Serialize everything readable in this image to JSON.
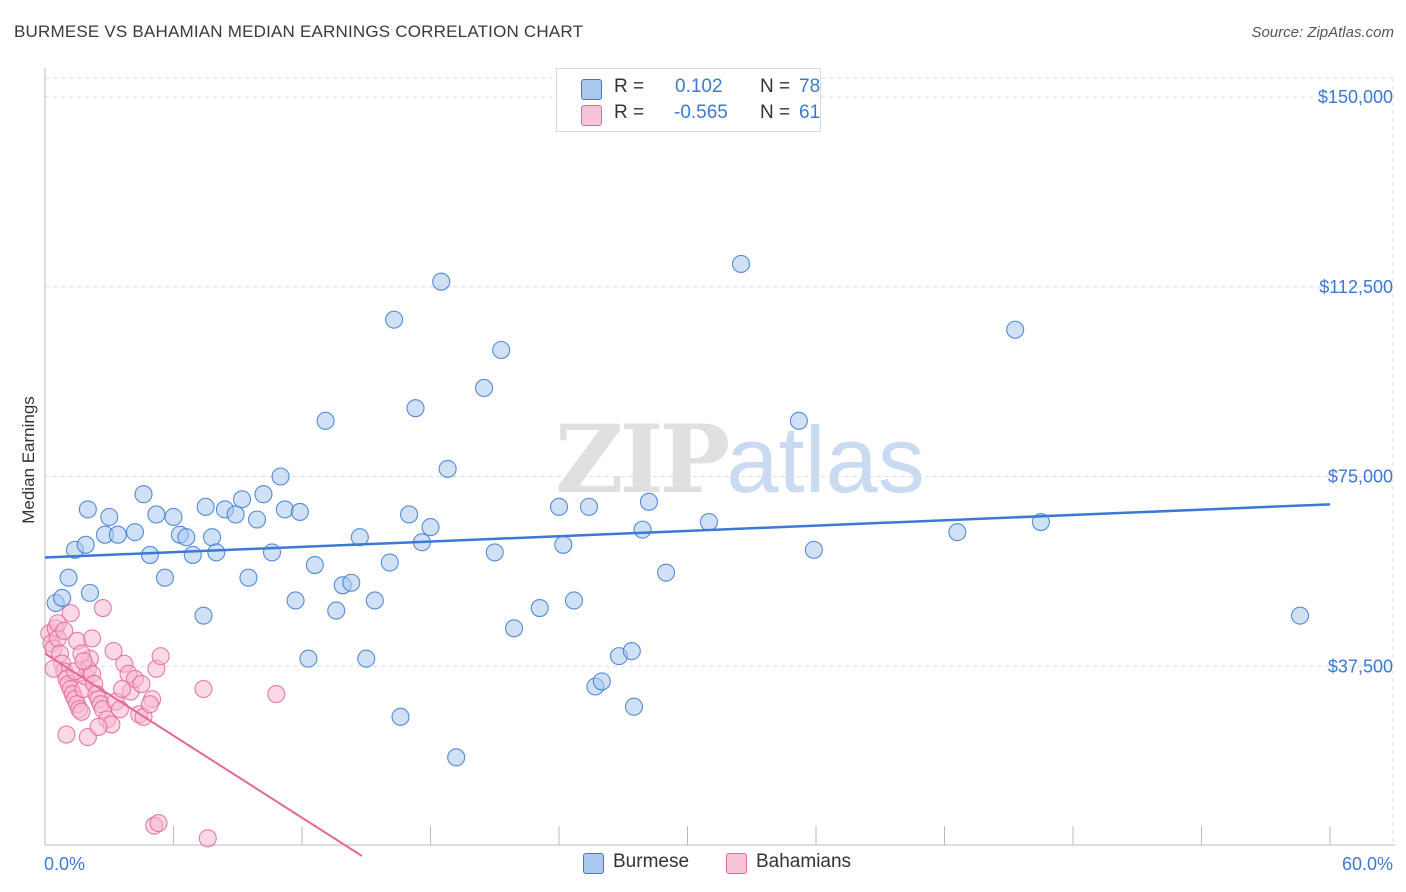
{
  "chart_data": {
    "type": "scatter",
    "title": "BURMESE VS BAHAMIAN MEDIAN EARNINGS CORRELATION CHART",
    "source": "Source: ZipAtlas.com",
    "xlabel": "",
    "ylabel": "Median Earnings",
    "xlim": [
      0,
      60
    ],
    "ylim": [
      0,
      150000
    ],
    "x_tick_labels": [
      "0.0%",
      "60.0%"
    ],
    "y_ticks": [
      {
        "value": 150000,
        "label": "$150,000"
      },
      {
        "value": 112500,
        "label": "$112,500"
      },
      {
        "value": 75000,
        "label": "$75,000"
      },
      {
        "value": 37500,
        "label": "$37,500"
      }
    ],
    "legend_top": [
      {
        "series": "Burmese",
        "r_label": "R =",
        "r_value": " 0.102",
        "n_label": "N =",
        "n_value": "78"
      },
      {
        "series": "Bahamians",
        "r_label": "R =",
        "r_value": "-0.565",
        "n_label": "N =",
        "n_value": "61"
      }
    ],
    "watermark": {
      "zip": "ZIP",
      "atlas": "atlas"
    },
    "colors": {
      "Burmese": "#3b79d4",
      "Burmese_fill": "#a9c8ef",
      "Bahamians": "#e4679b",
      "Bahamians_fill": "#f6b8cf"
    },
    "series": [
      {
        "name": "Burmese",
        "trendline": {
          "x": [
            0,
            60
          ],
          "y": [
            59000,
            69500
          ]
        },
        "points": [
          [
            0.5,
            50000
          ],
          [
            0.8,
            51000
          ],
          [
            1.1,
            55000
          ],
          [
            1.4,
            60500
          ],
          [
            1.9,
            61500
          ],
          [
            2.0,
            68500
          ],
          [
            2.1,
            52000
          ],
          [
            2.8,
            63500
          ],
          [
            3.0,
            67000
          ],
          [
            3.4,
            63500
          ],
          [
            4.2,
            64000
          ],
          [
            4.6,
            71500
          ],
          [
            4.9,
            59500
          ],
          [
            5.2,
            67500
          ],
          [
            5.6,
            55000
          ],
          [
            6.0,
            67000
          ],
          [
            6.3,
            63500
          ],
          [
            6.6,
            63000
          ],
          [
            6.9,
            59500
          ],
          [
            7.4,
            47500
          ],
          [
            7.5,
            69000
          ],
          [
            7.8,
            63000
          ],
          [
            8.0,
            60000
          ],
          [
            8.4,
            68500
          ],
          [
            8.9,
            67500
          ],
          [
            9.2,
            70500
          ],
          [
            9.5,
            55000
          ],
          [
            9.9,
            66500
          ],
          [
            10.2,
            71500
          ],
          [
            10.6,
            60000
          ],
          [
            11.0,
            75000
          ],
          [
            11.2,
            68500
          ],
          [
            11.7,
            50500
          ],
          [
            11.9,
            68000
          ],
          [
            12.3,
            39000
          ],
          [
            12.6,
            57500
          ],
          [
            13.1,
            86000
          ],
          [
            13.6,
            48500
          ],
          [
            13.9,
            53500
          ],
          [
            14.3,
            54000
          ],
          [
            14.7,
            63000
          ],
          [
            15.0,
            39000
          ],
          [
            15.4,
            50500
          ],
          [
            16.1,
            58000
          ],
          [
            16.3,
            106000
          ],
          [
            16.6,
            27500
          ],
          [
            17.0,
            67500
          ],
          [
            17.3,
            88500
          ],
          [
            17.6,
            62000
          ],
          [
            18.0,
            65000
          ],
          [
            18.5,
            113500
          ],
          [
            18.8,
            76500
          ],
          [
            19.2,
            19500
          ],
          [
            20.5,
            92500
          ],
          [
            21.3,
            100000
          ],
          [
            21.9,
            45000
          ],
          [
            23.1,
            49000
          ],
          [
            24.0,
            69000
          ],
          [
            24.2,
            61500
          ],
          [
            24.7,
            50500
          ],
          [
            25.4,
            69000
          ],
          [
            25.7,
            33500
          ],
          [
            26.0,
            34500
          ],
          [
            26.8,
            39500
          ],
          [
            27.4,
            40500
          ],
          [
            27.5,
            29500
          ],
          [
            27.9,
            64500
          ],
          [
            28.2,
            70000
          ],
          [
            32.5,
            117000
          ],
          [
            35.2,
            86000
          ],
          [
            35.9,
            60500
          ],
          [
            42.6,
            64000
          ],
          [
            45.3,
            104000
          ],
          [
            58.6,
            47500
          ],
          [
            46.5,
            66000
          ],
          [
            21.0,
            60000
          ],
          [
            29.0,
            56000
          ],
          [
            31.0,
            66000
          ]
        ]
      },
      {
        "name": "Bahamians",
        "trendline": {
          "x": [
            0,
            14.8
          ],
          "y": [
            40000,
            0
          ]
        },
        "points": [
          [
            0.2,
            44000
          ],
          [
            0.3,
            42000
          ],
          [
            0.4,
            41000
          ],
          [
            0.5,
            45000
          ],
          [
            0.6,
            43000
          ],
          [
            0.7,
            40000
          ],
          [
            0.8,
            38000
          ],
          [
            0.9,
            36500
          ],
          [
            1.0,
            35000
          ],
          [
            1.1,
            34000
          ],
          [
            1.2,
            33000
          ],
          [
            1.3,
            32000
          ],
          [
            1.4,
            31000
          ],
          [
            1.5,
            30000
          ],
          [
            1.6,
            29000
          ],
          [
            1.7,
            28500
          ],
          [
            1.8,
            33000
          ],
          [
            1.9,
            35500
          ],
          [
            2.0,
            37000
          ],
          [
            2.1,
            39000
          ],
          [
            2.2,
            36000
          ],
          [
            2.3,
            34000
          ],
          [
            2.4,
            32000
          ],
          [
            2.5,
            31000
          ],
          [
            2.6,
            30000
          ],
          [
            2.7,
            29000
          ],
          [
            2.9,
            27000
          ],
          [
            3.1,
            26000
          ],
          [
            3.3,
            30500
          ],
          [
            3.5,
            29000
          ],
          [
            3.7,
            38000
          ],
          [
            3.9,
            36000
          ],
          [
            4.0,
            32500
          ],
          [
            4.2,
            35000
          ],
          [
            4.4,
            28000
          ],
          [
            4.6,
            27500
          ],
          [
            5.0,
            31000
          ],
          [
            5.2,
            37000
          ],
          [
            5.4,
            39500
          ],
          [
            1.2,
            48000
          ],
          [
            0.6,
            46000
          ],
          [
            0.9,
            44500
          ],
          [
            1.5,
            42500
          ],
          [
            2.2,
            43000
          ],
          [
            2.7,
            49000
          ],
          [
            3.2,
            40500
          ],
          [
            3.6,
            33000
          ],
          [
            4.5,
            34000
          ],
          [
            4.9,
            30000
          ],
          [
            1.0,
            24000
          ],
          [
            1.4,
            36500
          ],
          [
            1.7,
            40000
          ],
          [
            2.0,
            23500
          ],
          [
            2.5,
            25500
          ],
          [
            7.4,
            33000
          ],
          [
            10.8,
            32000
          ],
          [
            5.1,
            6000
          ],
          [
            5.3,
            6500
          ],
          [
            7.6,
            3500
          ],
          [
            1.8,
            38500
          ],
          [
            0.4,
            37000
          ]
        ]
      }
    ]
  }
}
